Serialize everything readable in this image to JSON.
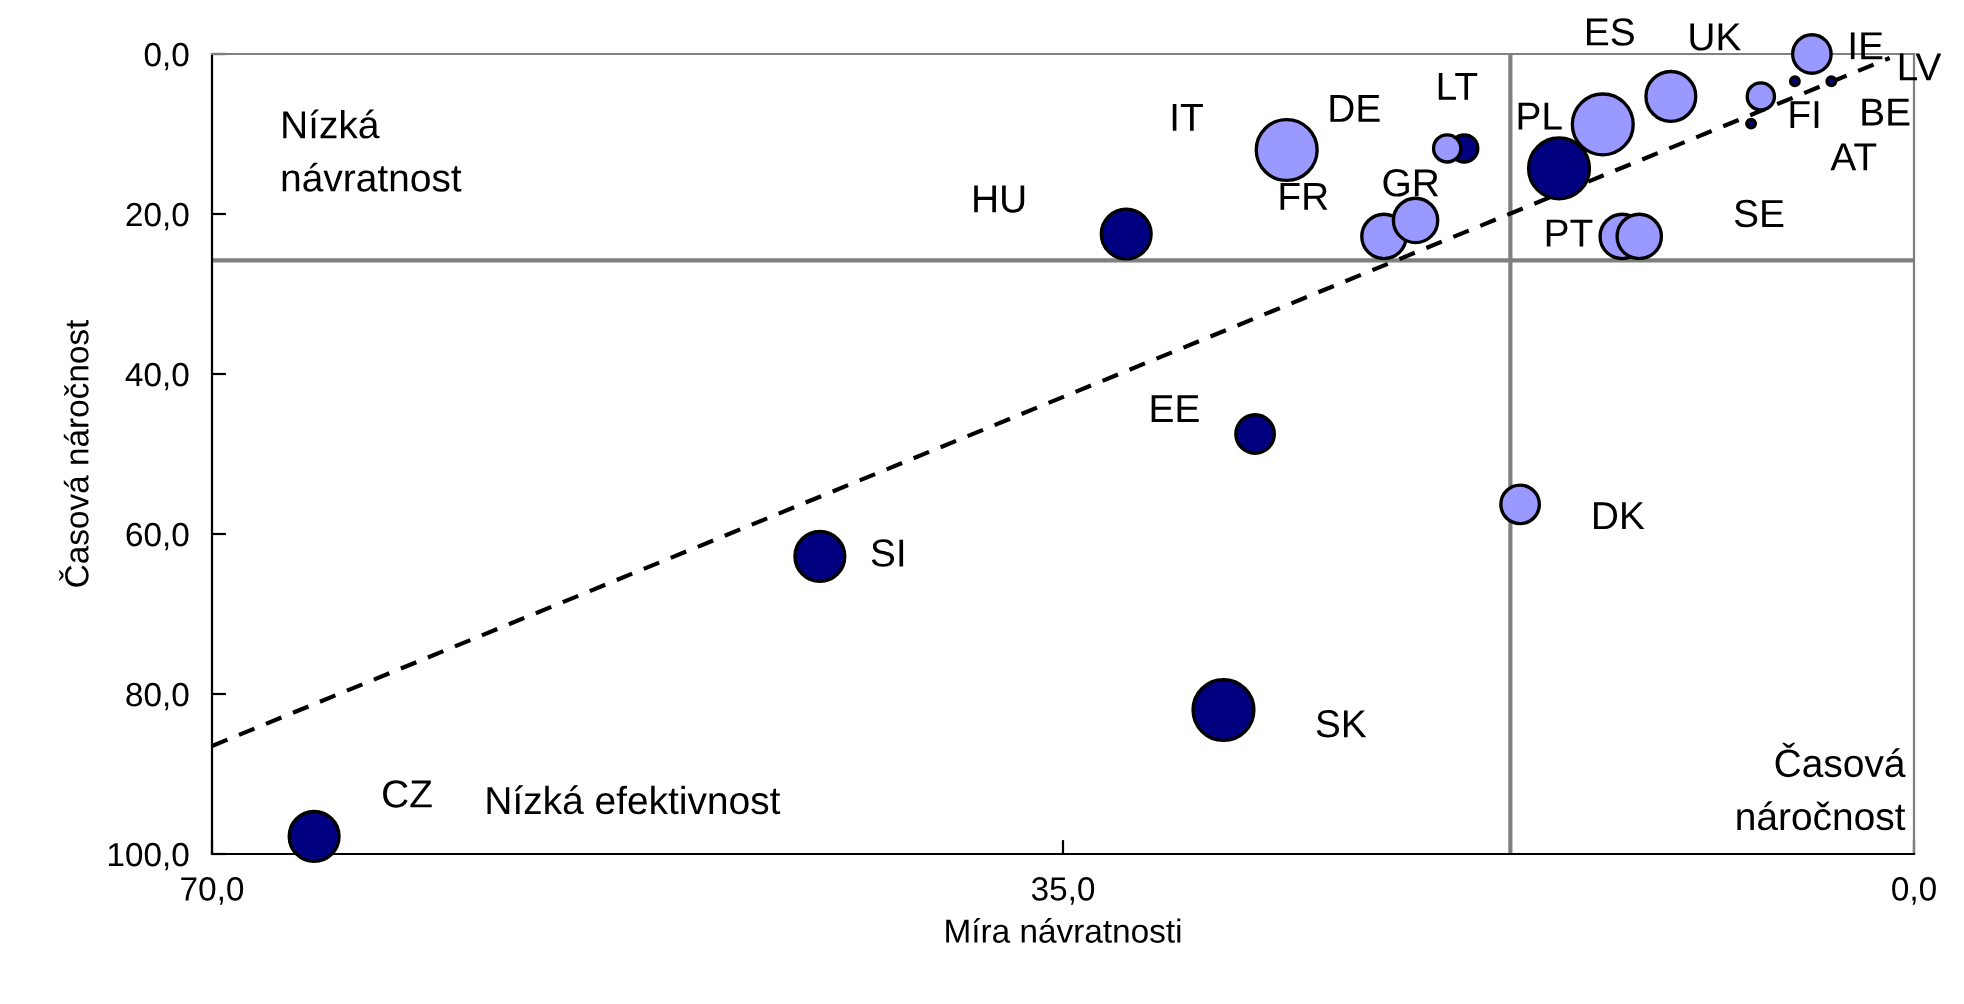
{
  "chart_data": {
    "type": "bubble",
    "xlabel": "Míra návratnosti",
    "ylabel": "Časová náročnost",
    "xlim": [
      70,
      0
    ],
    "ylim": [
      100,
      0
    ],
    "xticks": [
      {
        "value": 70,
        "label": "70,0"
      },
      {
        "value": 35,
        "label": "35,0"
      },
      {
        "value": 0,
        "label": "0,0"
      }
    ],
    "yticks": [
      {
        "value": 0,
        "label": "0,0"
      },
      {
        "value": 20,
        "label": "20,0"
      },
      {
        "value": 40,
        "label": "40,0"
      },
      {
        "value": 60,
        "label": "60,0"
      },
      {
        "value": 80,
        "label": "80,0"
      },
      {
        "value": 100,
        "label": "100,0"
      }
    ],
    "grid": false,
    "legend": false,
    "series": [
      {
        "color": "#000080",
        "x": [
          65.8,
          45.0,
          28.4,
          27.1,
          32.4,
          18.5,
          14.6,
          4.9,
          3.4,
          6.7
        ],
        "values": [
          97.8,
          62.8,
          82.0,
          47.5,
          22.5,
          11.8,
          14.3,
          3.4,
          3.4,
          8.7
        ],
        "sizes": [
          0.67,
          0.67,
          1,
          0.4,
          0.67,
          0.2,
          1,
          0.02,
          0.02,
          0.02
        ]
      },
      {
        "color": "#9999ff",
        "x": [
          25.8,
          21.8,
          20.5,
          19.2,
          12.8,
          10.0,
          6.3,
          4.2,
          12.0,
          11.3,
          16.2
        ],
        "values": [
          12.0,
          22.8,
          20.8,
          11.8,
          8.8,
          5.3,
          5.3,
          0.0,
          22.8,
          22.8,
          56.3
        ],
        "sizes": [
          1,
          0.53,
          0.53,
          0.2,
          1,
          0.67,
          0.2,
          0.4,
          0.53,
          0.53,
          0.4
        ]
      },
      {
        "type": "line",
        "line_style": "dashed",
        "color": "#000000",
        "x": [
          70,
          1
        ],
        "values": [
          86.5,
          0.5
        ]
      }
    ],
    "ref_lines": [
      {
        "axis": "x",
        "value": 16.6,
        "color": "#808080"
      },
      {
        "axis": "y",
        "value": 25.8,
        "color": "#808080"
      }
    ],
    "annotations": [
      "Nízká\nnávratnost",
      "Nízká efektivnost",
      "Časová\nnáročnost",
      {
        "text": "CZ",
        "x": 65.8,
        "y": 97.8
      },
      {
        "text": "SI",
        "x": 45.0,
        "y": 62.8
      },
      {
        "text": "SK",
        "x": 28.4,
        "y": 82.0
      },
      {
        "text": "EE",
        "x": 27.1,
        "y": 47.5
      },
      {
        "text": "HU",
        "x": 32.4,
        "y": 22.5
      },
      {
        "text": "IT",
        "x": 25.8,
        "y": 12.0
      },
      {
        "text": "FR",
        "x": 21.8,
        "y": 22.8
      },
      {
        "text": "GR",
        "x": 20.5,
        "y": 20.8
      },
      {
        "text": "DE",
        "x": 19.2,
        "y": 11.8
      },
      {
        "text": "LT",
        "x": 18.5,
        "y": 11.8
      },
      {
        "text": "PL",
        "x": 12.8,
        "y": 8.8
      },
      {
        "text": "ES",
        "x": 10.0,
        "y": 5.3
      },
      {
        "text": "UK",
        "x": 6.3,
        "y": 5.3
      },
      {
        "text": "IE",
        "x": 4.2,
        "y": 0.0
      },
      {
        "text": "LV",
        "x": 1,
        "y": 0.5
      },
      {
        "text": "FI",
        "x": 4.9,
        "y": 3.4
      },
      {
        "text": "BE",
        "x": 3.4,
        "y": 3.4
      },
      {
        "text": "AT",
        "x": 6.7,
        "y": 8.7
      },
      {
        "text": "PT",
        "x": 12.0,
        "y": 22.8
      },
      {
        "text": "SE",
        "x": 11.3,
        "y": 22.8
      },
      {
        "text": "DK",
        "x": 16.2,
        "y": 56.3
      }
    ]
  }
}
